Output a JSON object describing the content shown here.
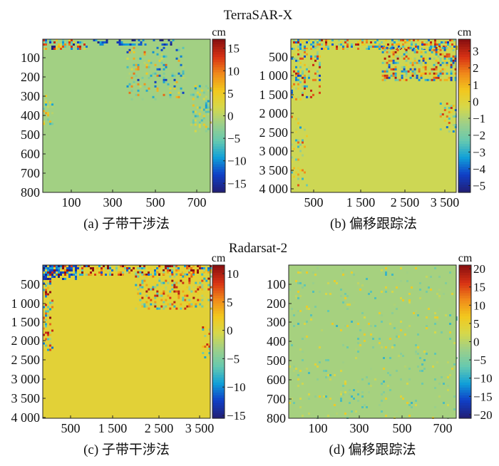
{
  "figure": {
    "section_top_title": "TerraSAR-X",
    "section_bottom_title": "Radarsat-2"
  },
  "colors": {
    "colormap": [
      "#20207a",
      "#1040c8",
      "#10a0d8",
      "#66c9b0",
      "#9ccf8a",
      "#d6d84a",
      "#f2c81e",
      "#f08a1a",
      "#d83214",
      "#8a1010"
    ],
    "background_green": "#98c98a",
    "background_yellow_green": "#a7c84d",
    "frame": "#222222"
  },
  "chart_data": [
    {
      "type": "heatmap",
      "id": "a",
      "caption": "(a) 子带干涉法",
      "y_ticks": [
        "100",
        "200",
        "300",
        "400",
        "500",
        "600",
        "700",
        "800"
      ],
      "x_ticks": [
        "100",
        "300",
        "500",
        "700"
      ],
      "colorbar_unit": "cm",
      "colorbar_ticks": [
        "15",
        "10",
        "5",
        "0",
        "−5",
        "−10",
        "−15"
      ],
      "colorbar_range": [
        -17,
        17
      ],
      "background_value": -1.5
    },
    {
      "type": "heatmap",
      "id": "b",
      "caption": "(b) 偏移跟踪法",
      "y_ticks": [
        "500",
        "1 000",
        "1 500",
        "2 000",
        "2 500",
        "3 000",
        "3 500",
        "4 000"
      ],
      "x_ticks": [
        "500",
        "1 500",
        "2 500",
        "3 500"
      ],
      "colorbar_unit": "cm",
      "colorbar_ticks": [
        "3",
        "2",
        "1",
        "0",
        "−1",
        "−2",
        "−3",
        "−4",
        "−5"
      ],
      "colorbar_range": [
        -5.4,
        3.7
      ],
      "background_value": -0.5
    },
    {
      "type": "heatmap",
      "id": "c",
      "caption": "(c) 子带干涉法",
      "y_ticks": [
        "500",
        "1 000",
        "1 500",
        "2 000",
        "2 500",
        "3 000",
        "3 500",
        "4 000"
      ],
      "x_ticks": [
        "500",
        "1 500",
        "2 500",
        "3 500"
      ],
      "colorbar_unit": "cm",
      "colorbar_ticks": [
        "10",
        "5",
        "0",
        "−5",
        "−10",
        "−15"
      ],
      "colorbar_range": [
        -15.5,
        11.5
      ],
      "background_value": 0.8
    },
    {
      "type": "heatmap",
      "id": "d",
      "caption": "(d) 偏移跟踪法",
      "y_ticks": [
        "100",
        "200",
        "300",
        "400",
        "500",
        "600",
        "700",
        "800"
      ],
      "x_ticks": [
        "100",
        "300",
        "500",
        "700"
      ],
      "colorbar_unit": "cm",
      "colorbar_ticks": [
        "20",
        "15",
        "10",
        "5",
        "0",
        "−5",
        "−10",
        "−15",
        "−20"
      ],
      "colorbar_range": [
        -21,
        21
      ],
      "background_value": -1.5
    }
  ]
}
